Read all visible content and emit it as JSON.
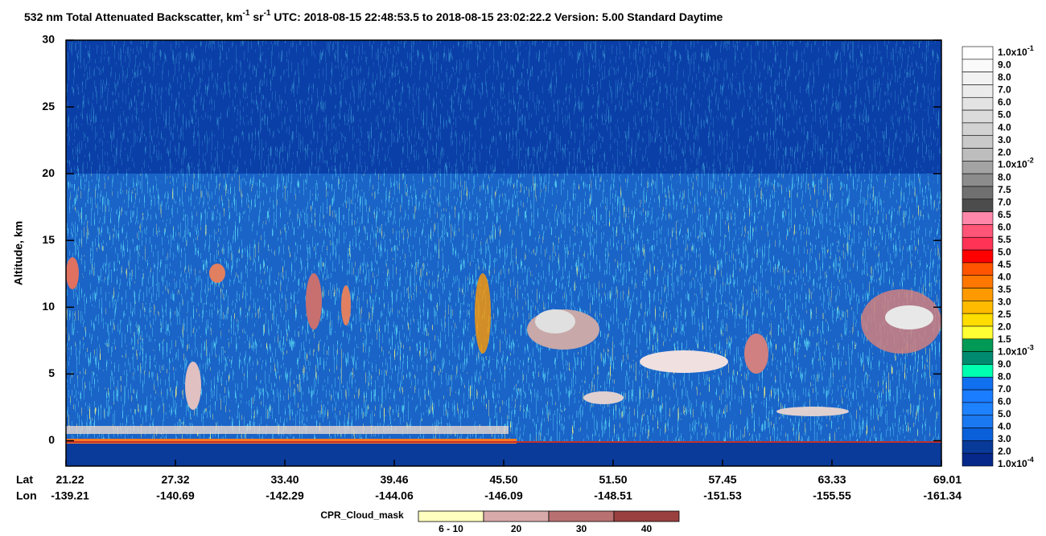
{
  "chart_data": {
    "type": "curtain",
    "title": [
      "532 nm Total Attenuated Backscatter, km",
      "-1",
      " sr",
      "-1",
      "     UTC:  2018-08-15 22:48:53.5  to  2018-08-15 23:02:22.2     Version: 5.00  Standard  Daytime"
    ],
    "y_label": "Altitude, km",
    "ylim": [
      -1.9,
      30
    ],
    "yticks": [
      0,
      5,
      10,
      15,
      20,
      25,
      30
    ],
    "x_row_labels": [
      "Lat",
      "Lon"
    ],
    "x_lat": [
      "21.22",
      "27.32",
      "33.40",
      "39.46",
      "45.50",
      "51.50",
      "57.45",
      "63.33",
      "69.01"
    ],
    "x_lon": [
      "-139.21",
      "-140.69",
      "-142.29",
      "-144.06",
      "-146.09",
      "-148.51",
      "-151.53",
      "-155.55",
      "-161.34"
    ],
    "colorbar": {
      "labels": [
        {
          "text": "1.0x10",
          "sup": "-1"
        },
        "9.0",
        "8.0",
        "7.0",
        "6.0",
        "5.0",
        "4.0",
        "3.0",
        "2.0",
        {
          "text": "1.0x10",
          "sup": "-2"
        },
        "8.0",
        "7.5",
        "7.0",
        "6.5",
        "6.0",
        "5.5",
        "5.0",
        "4.5",
        "4.0",
        "3.5",
        "3.0",
        "2.5",
        "2.0",
        "1.5",
        {
          "text": "1.0x10",
          "sup": "-3"
        },
        "9.0",
        "8.0",
        "7.0",
        "6.0",
        "5.0",
        "4.0",
        "3.0",
        "2.0",
        {
          "text": "1.0x10",
          "sup": "-4"
        }
      ],
      "colors": [
        "#ffffff",
        "#fafafa",
        "#f2f2f2",
        "#ebebeb",
        "#e3e3e3",
        "#dbdbdb",
        "#d2d2d2",
        "#c9c9c9",
        "#bdbdbd",
        "#a3a3a3",
        "#8c8c8c",
        "#707070",
        "#4c4c4c",
        "#ff88aa",
        "#ff5577",
        "#ff3355",
        "#ff0000",
        "#ff5500",
        "#ff7700",
        "#ff9900",
        "#ffbb00",
        "#ffdd00",
        "#ffff33",
        "#009955",
        "#008a70",
        "#00ffb0",
        "#1070f0",
        "#1a7cff",
        "#1e82ff",
        "#1a78f0",
        "#0a60d8",
        "#083a9a",
        "#06288a"
      ]
    },
    "cloud_mask": {
      "title": "CPR_Cloud_mask",
      "labels": [
        "6 - 10",
        "20",
        "30",
        "40"
      ],
      "colors": [
        "#ffffc0",
        "#d9aaaa",
        "#b87070",
        "#9a4040"
      ]
    }
  }
}
